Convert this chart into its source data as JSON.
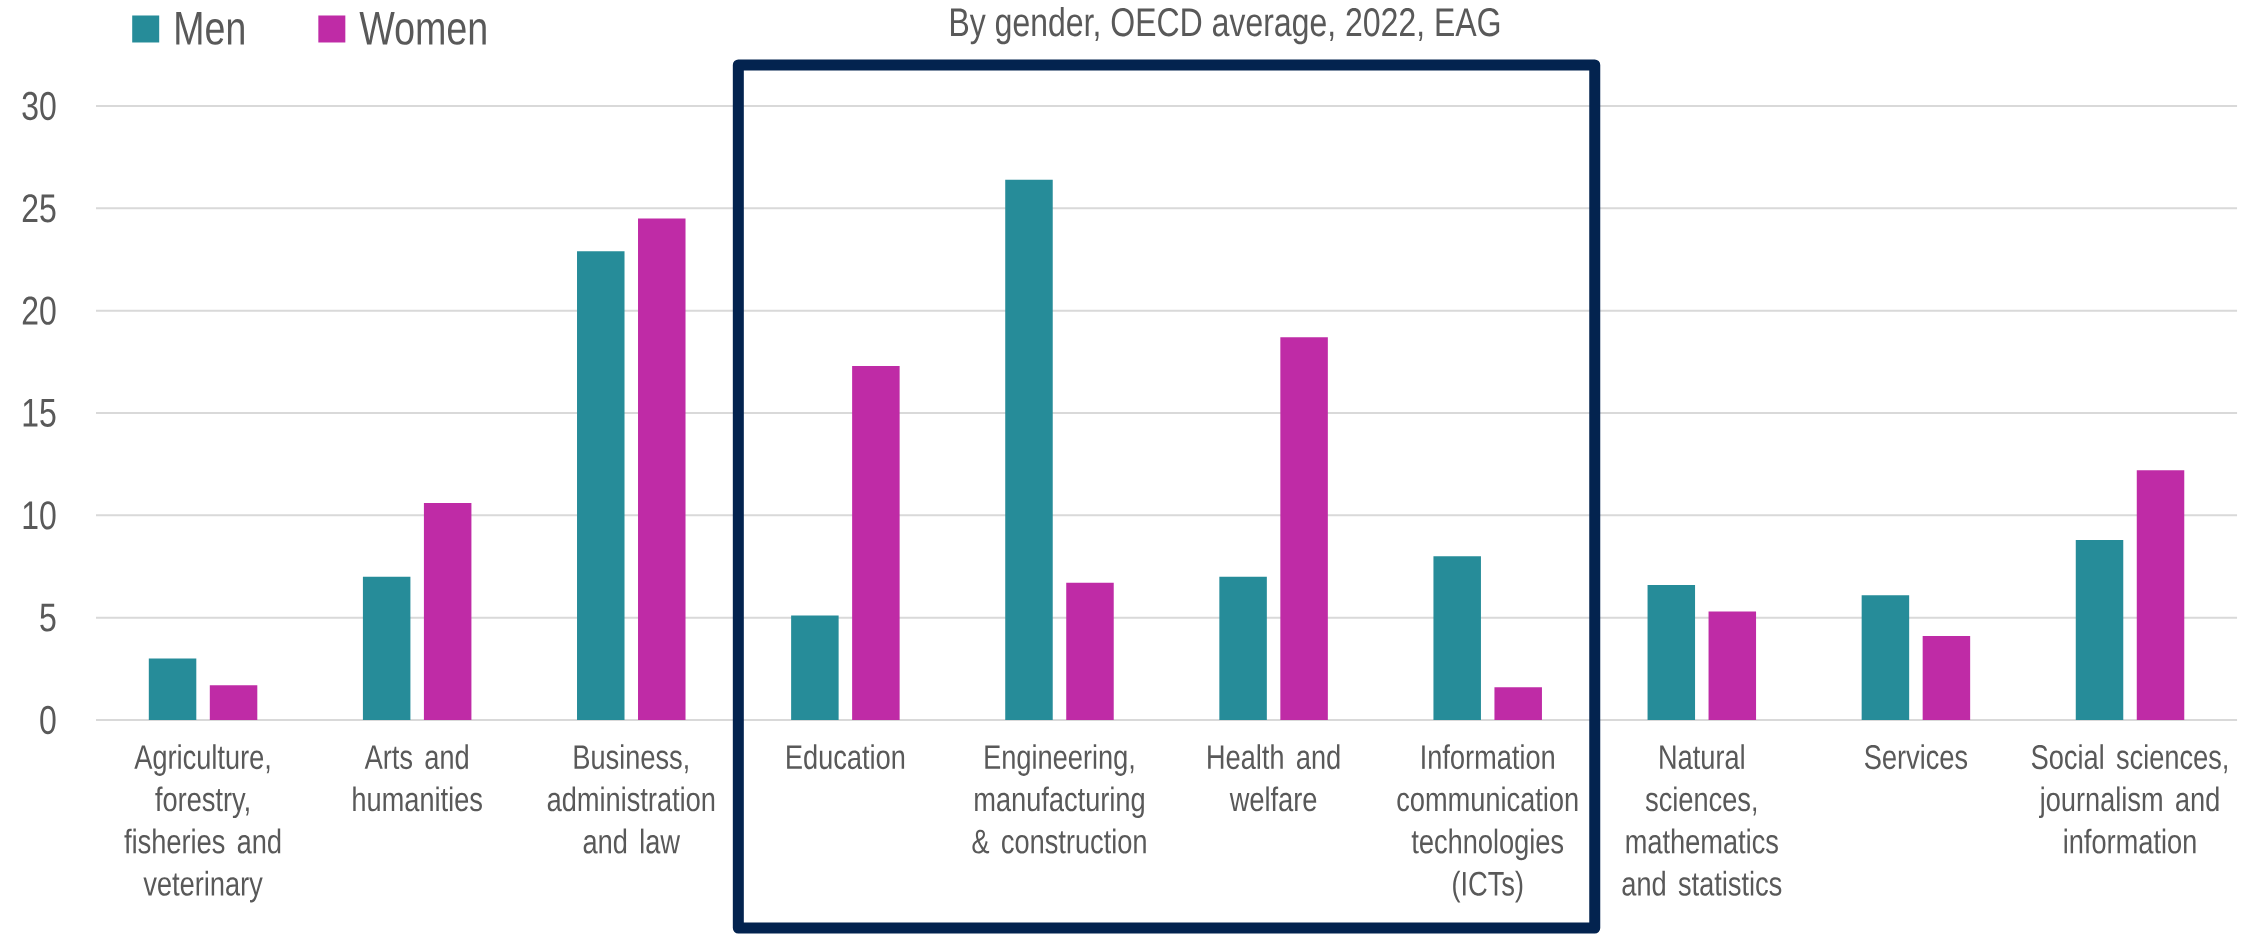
{
  "chart_data": {
    "type": "bar",
    "subtitle": "By gender, OECD average, 2022, EAG",
    "categories": [
      "Agriculture, forestry, fisheries and veterinary",
      "Arts and humanities",
      "Business, administration and law",
      "Education",
      "Engineering, manufacturing & construction",
      "Health and welfare",
      "Information communication technologies (ICTs)",
      "Natural sciences, mathematics and statistics",
      "Services",
      "Social sciences, journalism and information"
    ],
    "series": [
      {
        "name": "Men",
        "color": "#268c99",
        "values": [
          3.0,
          7.0,
          22.9,
          5.1,
          26.4,
          7.0,
          8.0,
          6.6,
          6.1,
          8.8
        ]
      },
      {
        "name": "Women",
        "color": "#bf2ba6",
        "values": [
          1.7,
          10.6,
          24.5,
          17.3,
          6.7,
          18.7,
          1.6,
          5.3,
          4.1,
          12.2
        ]
      }
    ],
    "ylim": [
      0,
      30
    ],
    "yticks": [
      0,
      5,
      10,
      15,
      20,
      25,
      30
    ],
    "grid": "y",
    "legend": "top left"
  }
}
